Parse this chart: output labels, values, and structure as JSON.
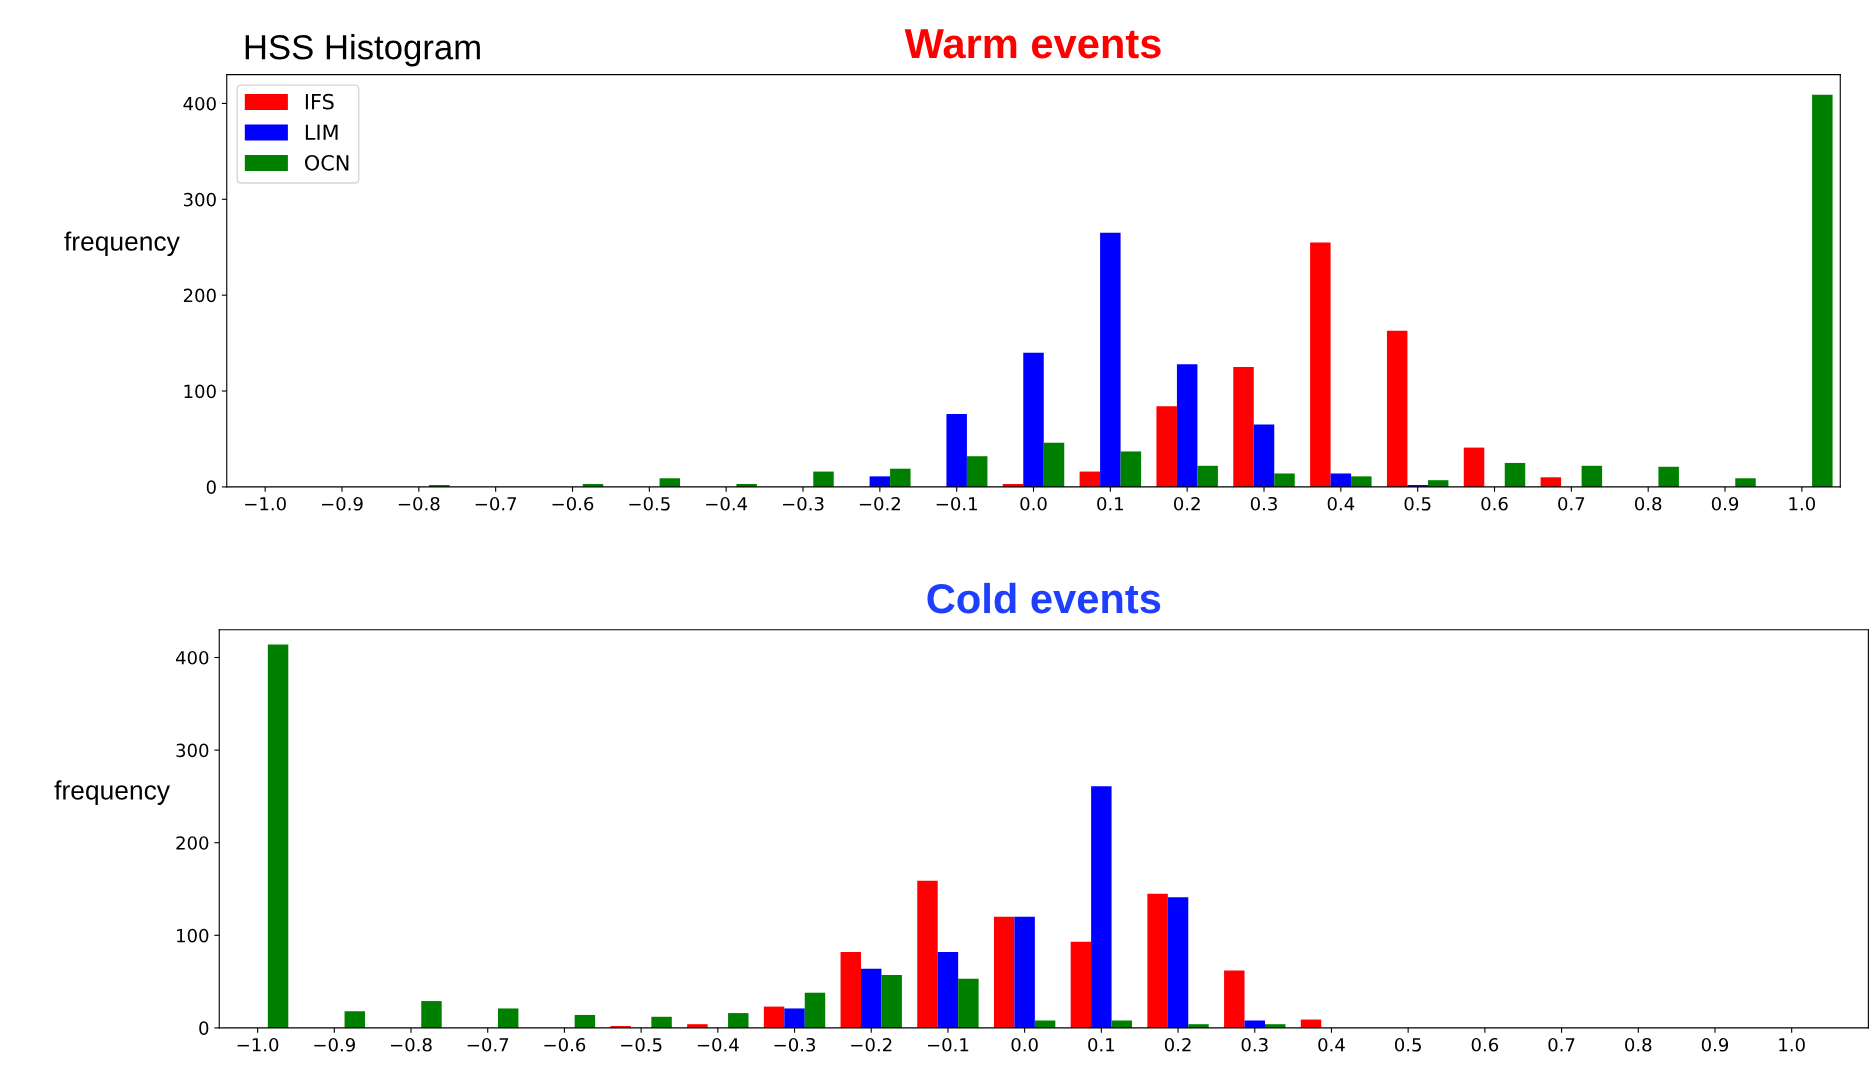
{
  "chart_data": [
    {
      "type": "histogram",
      "title": "Warm events",
      "ylabel": "frequency",
      "annotations": [
        "HSS Histogram"
      ],
      "bins": [
        -1.05,
        -0.95,
        -0.85,
        -0.75,
        -0.65,
        -0.55,
        -0.45,
        -0.35,
        -0.25,
        -0.15,
        -0.05,
        0.05,
        0.15,
        0.25,
        0.35,
        0.45,
        0.55,
        0.65,
        0.75,
        0.85,
        0.95,
        1.05
      ],
      "series": [
        {
          "name": "IFS",
          "color": "#ff0000",
          "values": [
            0,
            0,
            0,
            0,
            0,
            0,
            0,
            0,
            0,
            0,
            3,
            16,
            84,
            125,
            255,
            163,
            41,
            10,
            0,
            0,
            0
          ]
        },
        {
          "name": "LIM",
          "color": "#0000ff",
          "values": [
            0,
            0,
            0,
            0,
            0,
            0,
            0,
            0,
            11,
            76,
            140,
            265,
            128,
            65,
            14,
            2,
            0,
            0,
            0,
            0,
            0
          ]
        },
        {
          "name": "OCN",
          "color": "#008000",
          "values": [
            0,
            0,
            2,
            0,
            3,
            9,
            3,
            16,
            19,
            32,
            46,
            37,
            22,
            14,
            11,
            7,
            25,
            22,
            21,
            9,
            409
          ]
        }
      ],
      "xlim": [
        -1.05,
        1.05
      ],
      "xticks": [
        {
          "value": -1.0,
          "label": "−1.0"
        },
        {
          "value": -0.9,
          "label": "−0.9"
        },
        {
          "value": -0.8,
          "label": "−0.8"
        },
        {
          "value": -0.7,
          "label": "−0.7"
        },
        {
          "value": -0.6,
          "label": "−0.6"
        },
        {
          "value": -0.5,
          "label": "−0.5"
        },
        {
          "value": -0.4,
          "label": "−0.4"
        },
        {
          "value": -0.3,
          "label": "−0.3"
        },
        {
          "value": -0.2,
          "label": "−0.2"
        },
        {
          "value": -0.1,
          "label": "−0.1"
        },
        {
          "value": 0,
          "label": "0.0"
        },
        {
          "value": 0.1,
          "label": "0.1"
        },
        {
          "value": 0.2,
          "label": "0.2"
        },
        {
          "value": 0.3,
          "label": "0.3"
        },
        {
          "value": 0.4,
          "label": "0.4"
        },
        {
          "value": 0.5,
          "label": "0.5"
        },
        {
          "value": 0.6,
          "label": "0.6"
        },
        {
          "value": 0.7,
          "label": "0.7"
        },
        {
          "value": 0.8,
          "label": "0.8"
        },
        {
          "value": 0.9,
          "label": "0.9"
        },
        {
          "value": 1.0,
          "label": "1.0"
        }
      ],
      "ylim": [
        0,
        430
      ],
      "yticks": [
        0,
        100,
        200,
        300,
        400
      ],
      "grid": false,
      "legend": "top left"
    },
    {
      "type": "histogram",
      "title": "Cold events",
      "ylabel": "frequency",
      "bins": [
        -1.05,
        -0.95,
        -0.85,
        -0.75,
        -0.65,
        -0.55,
        -0.45,
        -0.35,
        -0.25,
        -0.15,
        -0.05,
        0.05,
        0.15,
        0.25,
        0.35,
        0.45,
        0.55,
        0.65,
        0.75,
        0.85,
        0.95,
        1.05
      ],
      "series": [
        {
          "color": "#ff0000",
          "values": [
            0,
            0,
            0,
            0,
            0,
            2,
            4,
            23,
            82,
            159,
            120,
            93,
            145,
            62,
            9,
            0,
            0,
            0,
            0,
            0,
            0
          ]
        },
        {
          "color": "#0000ff",
          "values": [
            0,
            0,
            0,
            0,
            0,
            0,
            0,
            21,
            64,
            82,
            120,
            261,
            141,
            8,
            0,
            0,
            0,
            0,
            0,
            0,
            0
          ]
        },
        {
          "color": "#008000",
          "values": [
            414,
            18,
            29,
            21,
            14,
            12,
            16,
            38,
            57,
            53,
            8,
            8,
            4,
            4,
            0,
            0,
            0,
            0,
            0,
            0,
            0
          ]
        }
      ],
      "xlim": [
        -1.05,
        1.1
      ],
      "xticks": [
        {
          "value": -1.0,
          "label": "−1.0"
        },
        {
          "value": -0.9,
          "label": "−0.9"
        },
        {
          "value": -0.8,
          "label": "−0.8"
        },
        {
          "value": -0.7,
          "label": "−0.7"
        },
        {
          "value": -0.6,
          "label": "−0.6"
        },
        {
          "value": -0.5,
          "label": "−0.5"
        },
        {
          "value": -0.4,
          "label": "−0.4"
        },
        {
          "value": -0.3,
          "label": "−0.3"
        },
        {
          "value": -0.2,
          "label": "−0.2"
        },
        {
          "value": -0.1,
          "label": "−0.1"
        },
        {
          "value": 0,
          "label": "0.0"
        },
        {
          "value": 0.1,
          "label": "0.1"
        },
        {
          "value": 0.2,
          "label": "0.2"
        },
        {
          "value": 0.3,
          "label": "0.3"
        },
        {
          "value": 0.4,
          "label": "0.4"
        },
        {
          "value": 0.5,
          "label": "0.5"
        },
        {
          "value": 0.6,
          "label": "0.6"
        },
        {
          "value": 0.7,
          "label": "0.7"
        },
        {
          "value": 0.8,
          "label": "0.8"
        },
        {
          "value": 0.9,
          "label": "0.9"
        },
        {
          "value": 1.0,
          "label": "1.0"
        }
      ],
      "ylim": [
        0,
        430
      ],
      "yticks": [
        0,
        100,
        200,
        300,
        400
      ],
      "grid": false,
      "legend": false
    }
  ]
}
